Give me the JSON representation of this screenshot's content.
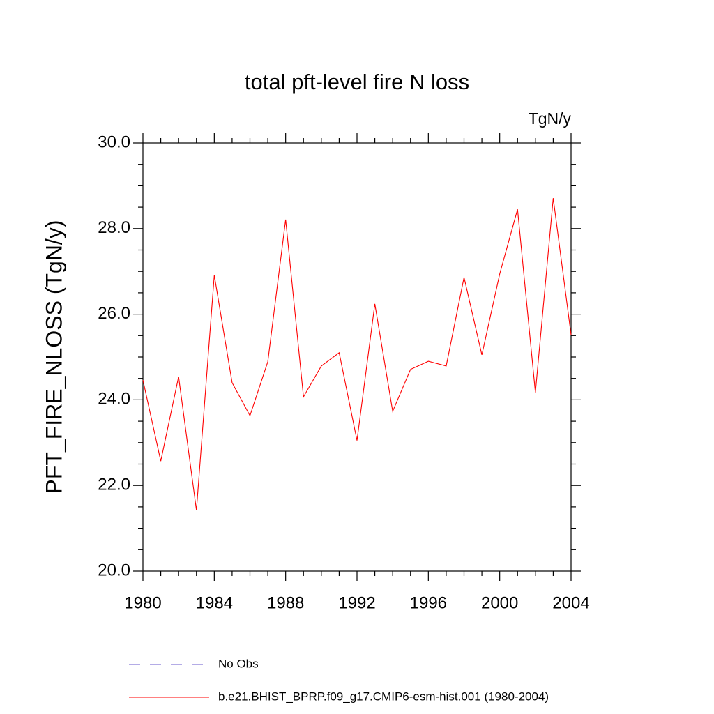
{
  "chart_data": {
    "type": "line",
    "title": "total pft-level fire N loss",
    "units": "TgN/y",
    "ylabel": "PFT_FIRE_NLOSS  (TgN/y)",
    "x": [
      1980,
      1981,
      1982,
      1983,
      1984,
      1985,
      1986,
      1987,
      1988,
      1989,
      1990,
      1991,
      1992,
      1993,
      1994,
      1995,
      1996,
      1997,
      1998,
      1999,
      2000,
      2001,
      2002,
      2003,
      2004
    ],
    "series": [
      {
        "name": "b.e21.BHIST_BPRP.f09_g17.CMIP6-esm-hist.001 (1980-2004)",
        "color": "#ff0000",
        "values": [
          24.46,
          22.57,
          24.54,
          21.42,
          26.91,
          24.4,
          23.63,
          24.89,
          28.21,
          24.07,
          24.79,
          25.1,
          23.05,
          26.24,
          23.73,
          24.71,
          24.9,
          24.79,
          26.86,
          25.05,
          26.94,
          28.45,
          24.17,
          28.71,
          25.52
        ]
      }
    ],
    "extra_legend": [
      {
        "name": "No Obs",
        "color": "#6a5acd",
        "dash": true
      }
    ],
    "xlim": [
      1980,
      2004
    ],
    "xticks": [
      1980,
      1984,
      1988,
      1992,
      1996,
      2000,
      2004
    ],
    "ylim": [
      20,
      30
    ],
    "yticks": [
      {
        "value": 20,
        "label": "20.0"
      },
      {
        "value": 22,
        "label": "22.0"
      },
      {
        "value": 24,
        "label": "24.0"
      },
      {
        "value": 26,
        "label": "26.0"
      },
      {
        "value": 28,
        "label": "28.0"
      },
      {
        "value": 30,
        "label": "30.0"
      }
    ]
  }
}
